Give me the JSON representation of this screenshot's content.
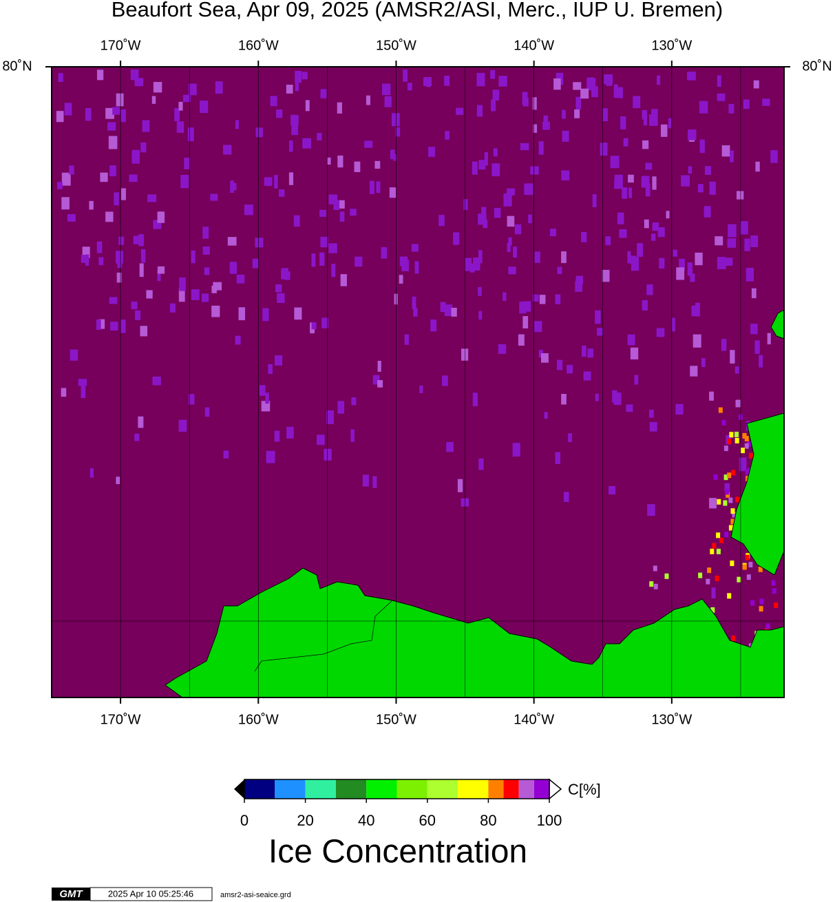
{
  "title": "Beaufort Sea, Apr 09, 2025 (AMSR2/ASI, Merc., IUP U. Bremen)",
  "map": {
    "xlim": [
      -175,
      -121.85
    ],
    "lon_ticks": [
      {
        "value": -170,
        "label": "170˚W"
      },
      {
        "value": -160,
        "label": "160˚W"
      },
      {
        "value": -150,
        "label": "150˚W"
      },
      {
        "value": -140,
        "label": "140˚W"
      },
      {
        "value": -130,
        "label": "130˚W"
      }
    ],
    "lat_label": "80˚N"
  },
  "colorbar": {
    "range": [
      0,
      100
    ],
    "bounds": [
      0,
      10,
      20,
      30,
      40,
      50,
      60,
      70,
      80,
      85,
      90,
      95,
      100
    ],
    "colors": [
      "#000080",
      "#1e90ff",
      "#30f0a0",
      "#228b22",
      "#00f000",
      "#7cf000",
      "#adff2f",
      "#ffff00",
      "#ff8000",
      "#ff0000",
      "#b65ad6",
      "#9400d3"
    ],
    "ticks": [
      0,
      20,
      40,
      60,
      80,
      100
    ],
    "unit": "C[%]",
    "label": "Ice Concentration"
  },
  "footer": {
    "logo": "GMT",
    "timestamp": "2025 Apr 10 05:25:46",
    "file": "amsr2-asi-seaice.grd"
  }
}
